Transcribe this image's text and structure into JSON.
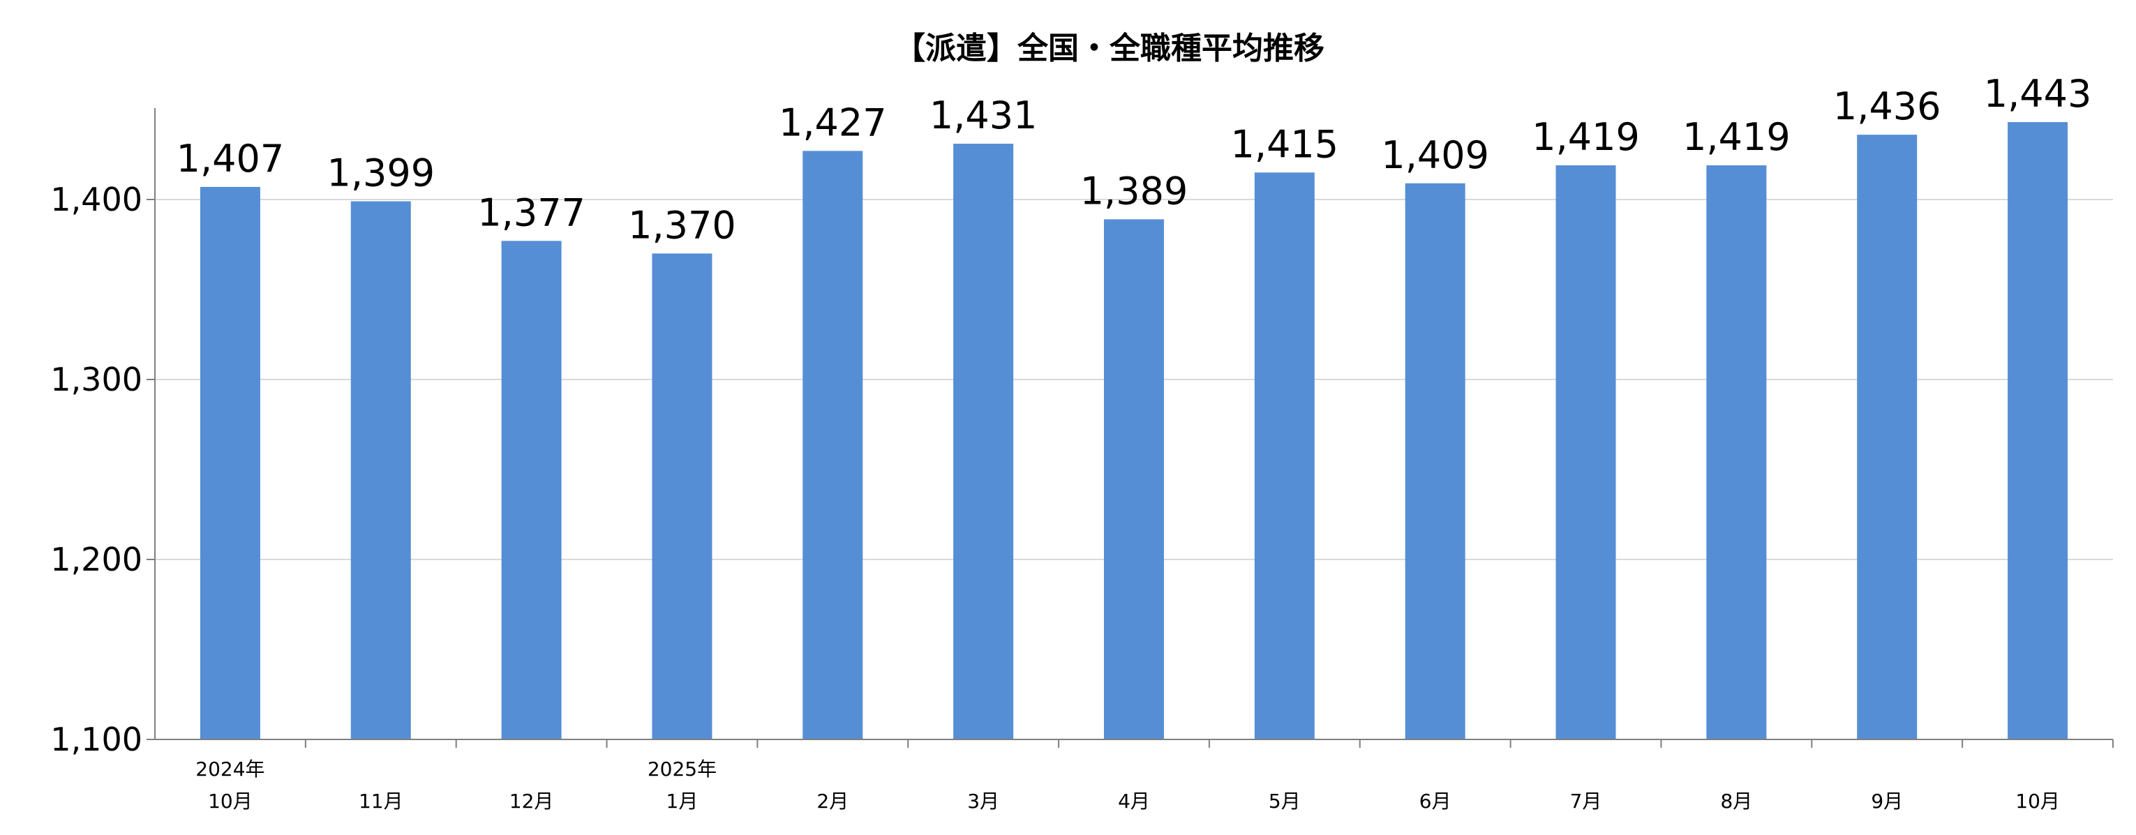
{
  "chart_data": {
    "type": "bar",
    "title": "【派遣】全国・全職種平均推移",
    "categories": [
      {
        "year": "2024年",
        "month": "10月"
      },
      {
        "year": "",
        "month": "11月"
      },
      {
        "year": "",
        "month": "12月"
      },
      {
        "year": "2025年",
        "month": "1月"
      },
      {
        "year": "",
        "month": "2月"
      },
      {
        "year": "",
        "month": "3月"
      },
      {
        "year": "",
        "month": "4月"
      },
      {
        "year": "",
        "month": "5月"
      },
      {
        "year": "",
        "month": "6月"
      },
      {
        "year": "",
        "month": "7月"
      },
      {
        "year": "",
        "month": "8月"
      },
      {
        "year": "",
        "month": "9月"
      },
      {
        "year": "",
        "month": "10月"
      }
    ],
    "values": [
      1407,
      1399,
      1377,
      1370,
      1427,
      1431,
      1389,
      1415,
      1409,
      1419,
      1419,
      1436,
      1443
    ],
    "value_labels": [
      "1,407",
      "1,399",
      "1,377",
      "1,370",
      "1,427",
      "1,431",
      "1,389",
      "1,415",
      "1,409",
      "1,419",
      "1,419",
      "1,436",
      "1,443"
    ],
    "ylim": [
      1100,
      1450
    ],
    "yticks": [
      1100,
      1200,
      1300,
      1400
    ],
    "ytick_labels": [
      "1,100",
      "1,200",
      "1,300",
      "1,400"
    ],
    "grid": true,
    "legend": "none",
    "bar_color": "#558ED5",
    "grid_color": "#D9D9D9",
    "axis_color": "#7F7F7F"
  }
}
